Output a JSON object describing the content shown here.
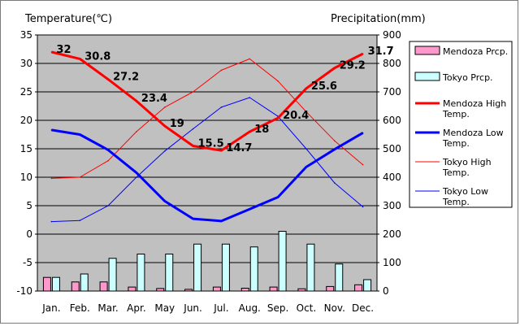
{
  "chart_data": {
    "type": "bar",
    "left_axis_title": "Temperature(℃)",
    "right_axis_title": "Precipitation(mm)",
    "months": [
      "Jan.",
      "Feb.",
      "Mar.",
      "Apr.",
      "May",
      "Jun.",
      "Jul.",
      "Aug.",
      "Sep.",
      "Oct.",
      "Nov.",
      "Dec."
    ],
    "temp_ylim": [
      -10,
      35
    ],
    "temp_ticks": [
      "35",
      "30",
      "25",
      "20",
      "15",
      "10",
      "5",
      "0",
      "-5",
      "-10"
    ],
    "temp_tick_values": [
      35,
      30,
      25,
      20,
      15,
      10,
      5,
      0,
      -5,
      -10
    ],
    "precip_ylim": [
      0,
      900
    ],
    "precip_ticks": [
      "900",
      "800",
      "700",
      "600",
      "500",
      "400",
      "300",
      "200",
      "100",
      "0"
    ],
    "precip_tick_values": [
      900,
      800,
      700,
      600,
      500,
      400,
      300,
      200,
      100,
      0
    ],
    "grid": true,
    "legend_position": "right",
    "precip_series": [
      {
        "name": "Mendoza Prcp.",
        "color": "#ff99cc",
        "values": [
          48,
          32,
          32,
          14,
          9,
          6,
          14,
          10,
          14,
          8,
          16,
          22
        ]
      },
      {
        "name": "Tokyo Prcp.",
        "color": "#ccffff",
        "values": [
          48,
          60,
          115,
          130,
          130,
          165,
          165,
          155,
          210,
          165,
          95,
          40
        ]
      }
    ],
    "temp_series": [
      {
        "name": "Mendoza High Temp.",
        "color": "#ff0000",
        "width": 3,
        "values": [
          32,
          30.8,
          27.2,
          23.4,
          19,
          15.5,
          14.7,
          18,
          20.4,
          25.6,
          29.2,
          31.7
        ]
      },
      {
        "name": "Mendoza Low Temp.",
        "color": "#0000ff",
        "width": 3,
        "values": [
          18.3,
          17.5,
          14.8,
          10.8,
          5.8,
          2.7,
          2.3,
          4.4,
          6.5,
          11.8,
          14.9,
          17.8
        ]
      },
      {
        "name": "Tokyo High Temp.",
        "color": "#ff0000",
        "width": 1,
        "values": [
          9.8,
          10.0,
          12.9,
          18.0,
          22.3,
          25.0,
          28.8,
          30.8,
          26.9,
          21.5,
          16.4,
          12.2
        ]
      },
      {
        "name": "Tokyo Low Temp.",
        "color": "#0000ff",
        "width": 1,
        "values": [
          2.2,
          2.4,
          5.0,
          10.0,
          14.6,
          18.5,
          22.3,
          24.0,
          20.7,
          15.0,
          9.0,
          4.8
        ]
      }
    ],
    "data_labels": [
      "32",
      "30.8",
      "27.2",
      "23.4",
      "19",
      "15.5",
      "14.7",
      "18",
      "20.4",
      "25.6",
      "29.2",
      "31.7"
    ],
    "legend": [
      {
        "lines": [
          "Mendoza Prcp."
        ],
        "kind": "box",
        "color": "#ff99cc"
      },
      {
        "lines": [
          "Tokyo Prcp."
        ],
        "kind": "box",
        "color": "#ccffff"
      },
      {
        "lines": [
          "Mendoza High",
          "Temp."
        ],
        "kind": "line",
        "color": "#ff0000",
        "width": 3
      },
      {
        "lines": [
          "Mendoza Low",
          "Temp."
        ],
        "kind": "line",
        "color": "#0000ff",
        "width": 3
      },
      {
        "lines": [
          "Tokyo High",
          "Temp."
        ],
        "kind": "line",
        "color": "#ff0000",
        "width": 1
      },
      {
        "lines": [
          "Tokyo Low",
          "Temp."
        ],
        "kind": "line",
        "color": "#0000ff",
        "width": 1
      }
    ]
  }
}
